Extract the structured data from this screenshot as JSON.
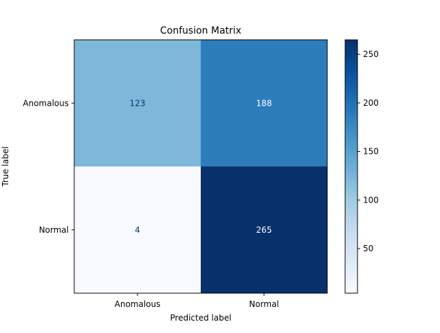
{
  "chart_data": {
    "type": "heatmap",
    "title": "Confusion Matrix",
    "xlabel": "Predicted label",
    "ylabel": "True label",
    "x_categories": [
      "Anomalous",
      "Normal"
    ],
    "y_categories": [
      "Anomalous",
      "Normal"
    ],
    "values": [
      [
        123,
        188
      ],
      [
        4,
        265
      ]
    ],
    "colormap": "Blues",
    "vmin": 4,
    "vmax": 265,
    "colorbar_ticks": [
      50,
      100,
      150,
      200,
      250
    ],
    "colorbar_placement": "right",
    "grid": false
  }
}
